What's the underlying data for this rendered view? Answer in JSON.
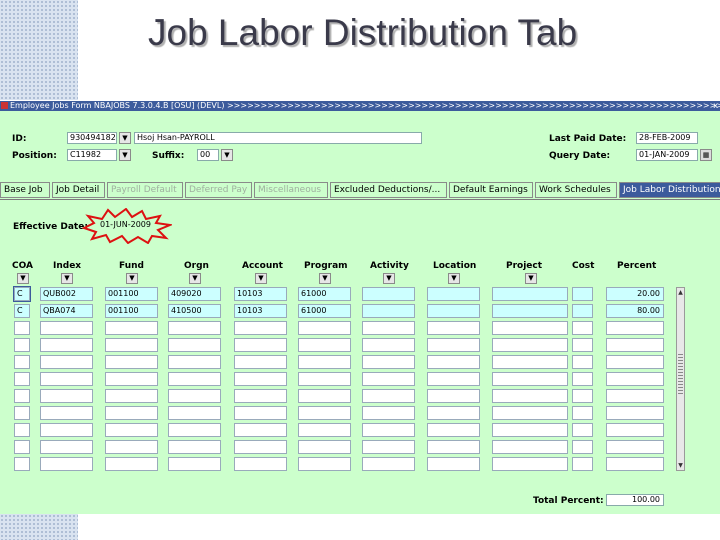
{
  "slide": {
    "title": "Job Labor Distribution Tab"
  },
  "window": {
    "title": "Employee Jobs Form  NBAJOBS  7.3.0.4.B  [OSU]  (DEVL)  >>>>>>>>>>>>>>>>>>>>>>>>>>>>>>>>>>>>>>>>>>>>>>>>>>>>>>>>>>>>>>>>>>>>>>>>>>>>>>>>>>>>>>>>>>>>>>>>>>>>>>>",
    "close": "x"
  },
  "key": {
    "id_label": "ID:",
    "id_value": "930494182",
    "name_value": "Hsoj Hsan-PAYROLL",
    "position_label": "Position:",
    "position_value": "C11982",
    "suffix_label": "Suffix:",
    "suffix_value": "00",
    "last_paid_label": "Last Paid Date:",
    "last_paid_value": "28-FEB-2009",
    "query_label": "Query Date:",
    "query_value": "01-JAN-2009"
  },
  "tabs": [
    {
      "label": "Base Job",
      "state": "enabled"
    },
    {
      "label": "Job Detail",
      "state": "enabled"
    },
    {
      "label": "Payroll Default",
      "state": "disabled"
    },
    {
      "label": "Deferred Pay",
      "state": "disabled"
    },
    {
      "label": "Miscellaneous",
      "state": "disabled"
    },
    {
      "label": "Excluded Deductions/...",
      "state": "enabled"
    },
    {
      "label": "Default Earnings",
      "state": "enabled"
    },
    {
      "label": "Work Schedules",
      "state": "enabled"
    },
    {
      "label": "Job Labor Distribution",
      "state": "active"
    }
  ],
  "effective": {
    "label": "Effective Date:",
    "value": "01-JUN-2009"
  },
  "columns": [
    "COA",
    "Index",
    "Fund",
    "Orgn",
    "Account",
    "Program",
    "Activity",
    "Location",
    "Project",
    "Cost",
    "Percent"
  ],
  "rows": [
    {
      "coa": "C",
      "index": "QUB002",
      "fund": "001100",
      "orgn": "409020",
      "account": "10103",
      "program": "61000",
      "activity": "",
      "location": "",
      "project": "",
      "cost": "",
      "percent": "20.00"
    },
    {
      "coa": "C",
      "index": "QBA074",
      "fund": "001100",
      "orgn": "410500",
      "account": "10103",
      "program": "61000",
      "activity": "",
      "location": "",
      "project": "",
      "cost": "",
      "percent": "80.00"
    }
  ],
  "total": {
    "label": "Total Percent:",
    "value": "100.00"
  },
  "colors": {
    "accent": "#3c5b9c",
    "form_bg": "#ccffcc",
    "highlight_row": "#ccffff",
    "burst": "#dd1111"
  }
}
